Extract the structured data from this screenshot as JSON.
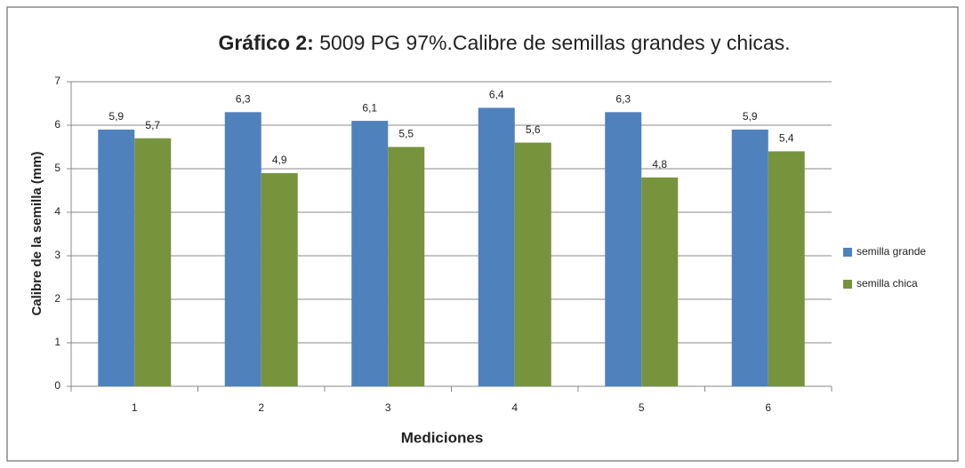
{
  "chart_data": {
    "type": "bar",
    "title": [
      "Gráfico 2:",
      "5009 PG 97%.Calibre de semillas grandes y chicas."
    ],
    "x_label": "Mediciones",
    "y_label": "Calibre de la semilla (mm)",
    "categories": [
      "1",
      "2",
      "3",
      "4",
      "5",
      "6"
    ],
    "series": [
      {
        "name": "semilla grande",
        "color": "#4f81bd",
        "values": [
          5.9,
          6.3,
          6.1,
          6.4,
          6.3,
          5.9
        ],
        "value_labels": [
          "5,9",
          "6,3",
          "6,1",
          "6,4",
          "6,3",
          "5,9"
        ]
      },
      {
        "name": "semilla chica",
        "color": "#77933c",
        "values": [
          5.7,
          4.9,
          5.5,
          5.6,
          4.8,
          5.4
        ],
        "value_labels": [
          "5,7",
          "4,9",
          "5,5",
          "5,6",
          "4,8",
          "5,4"
        ]
      }
    ],
    "ylim": [
      0,
      7
    ],
    "yticks": [
      0,
      1,
      2,
      3,
      4,
      5,
      6,
      7
    ],
    "grid": true,
    "legend": "right"
  }
}
